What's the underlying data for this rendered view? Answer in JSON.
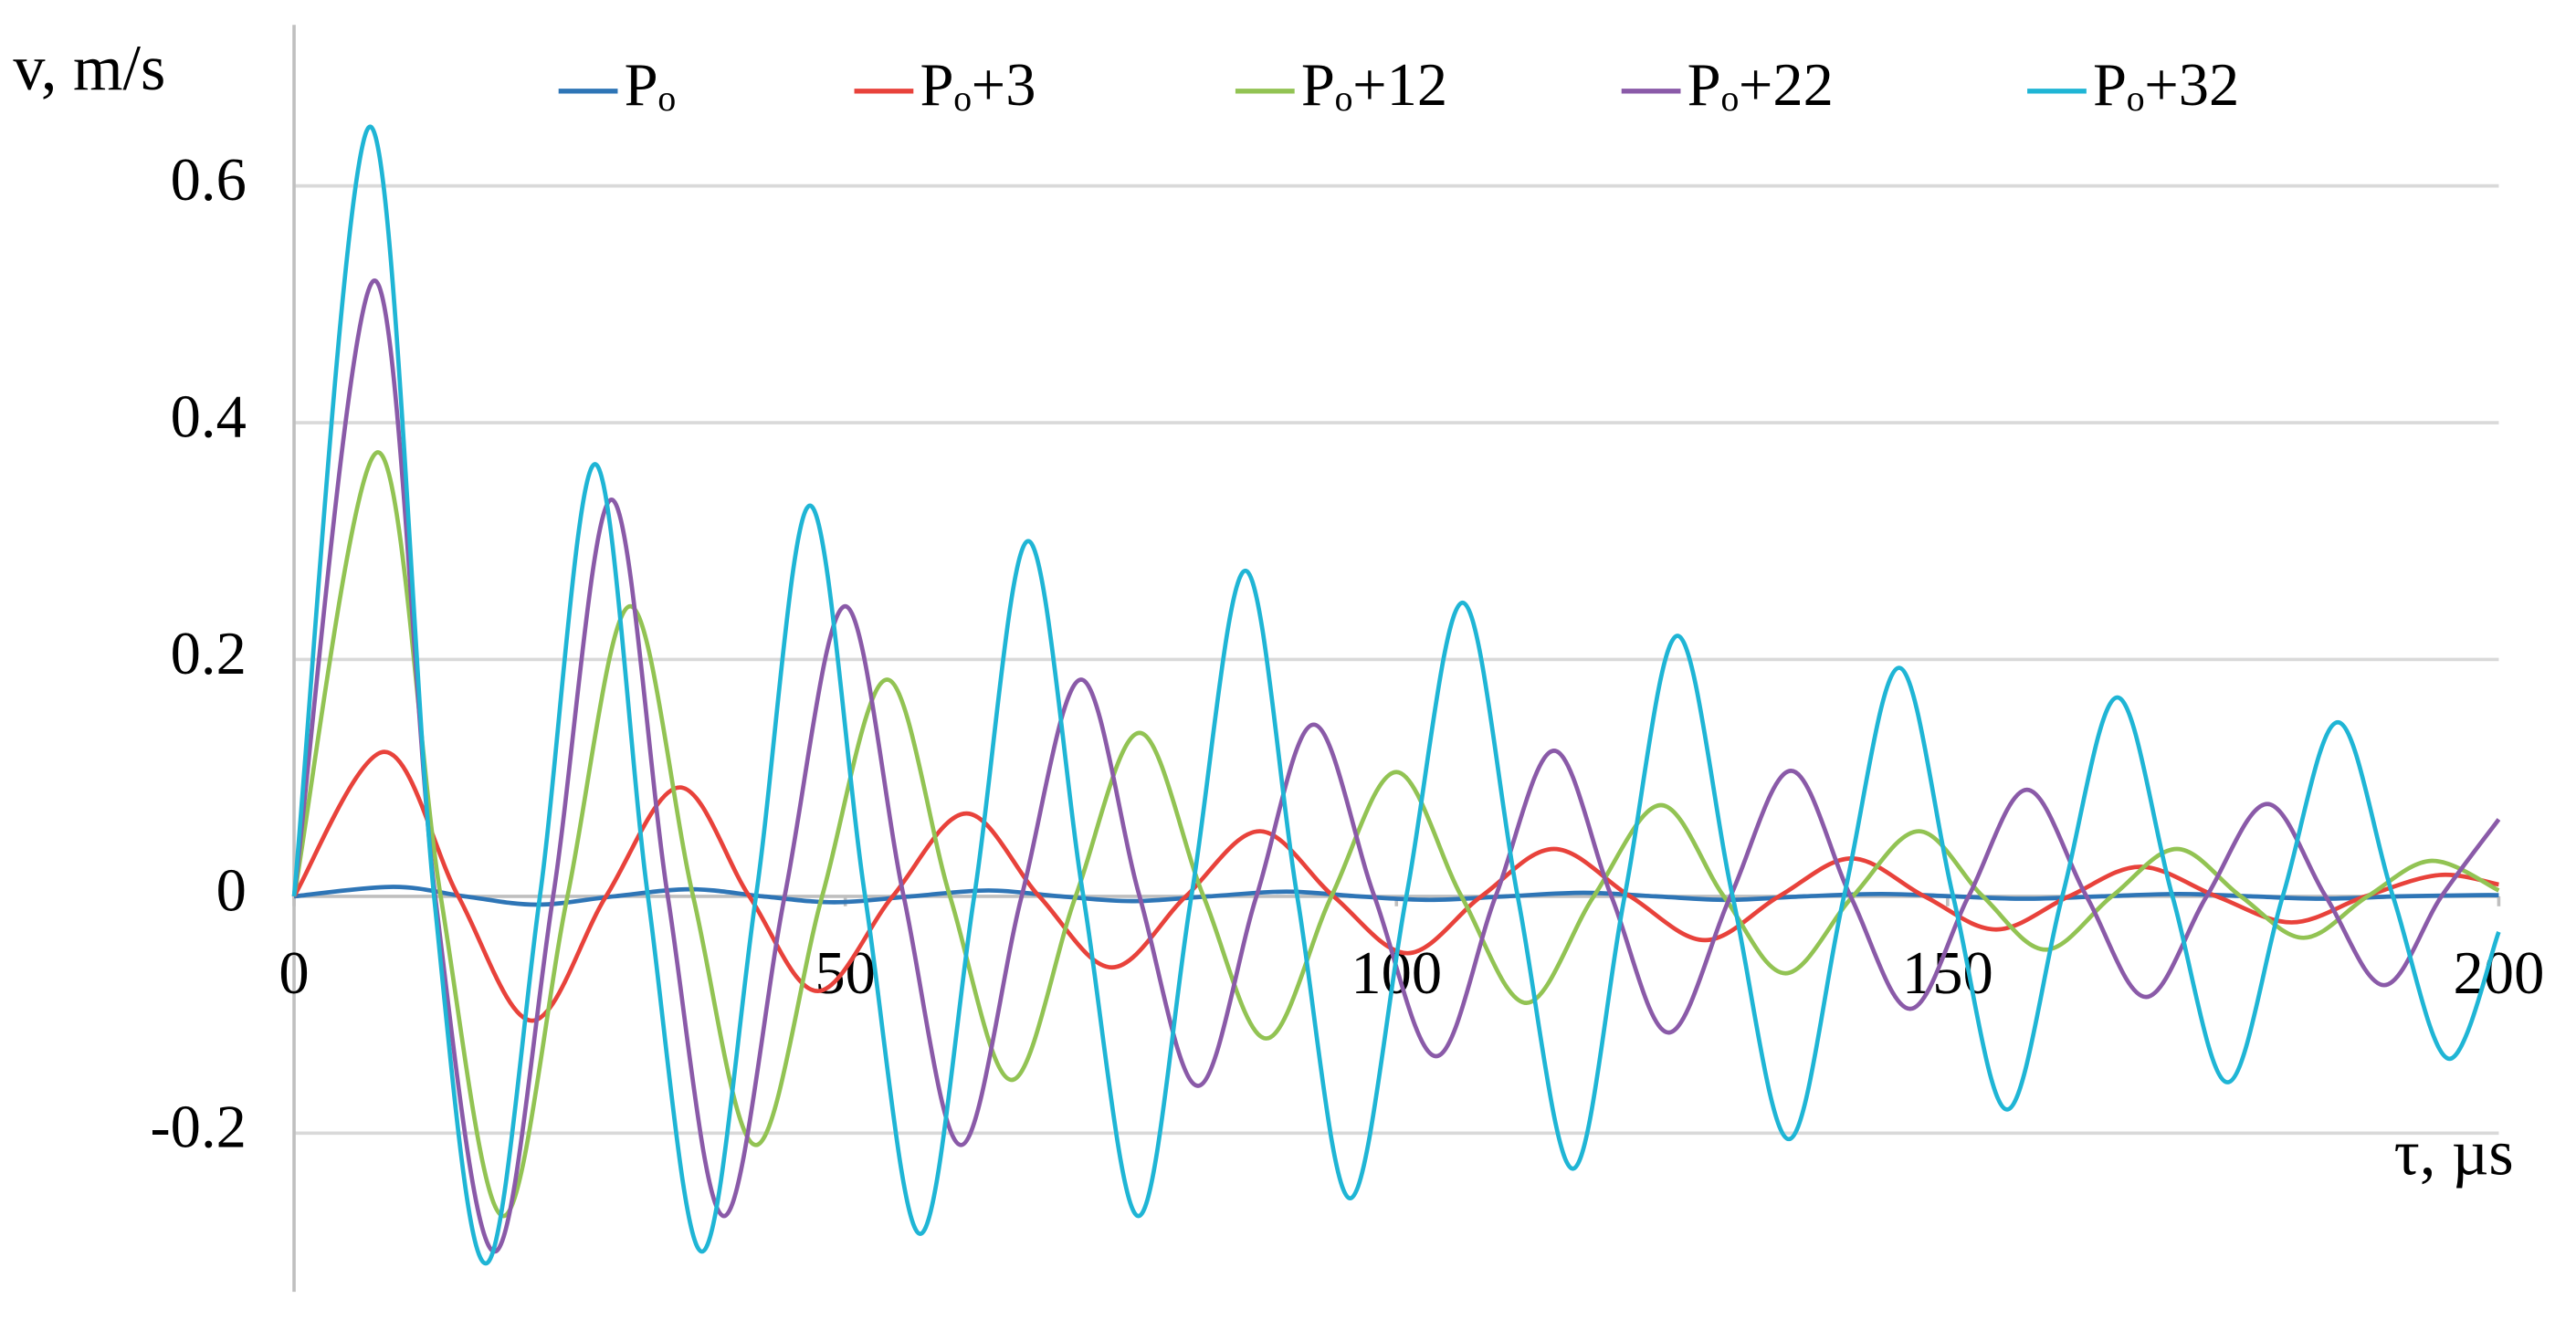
{
  "chart_data": {
    "type": "line",
    "y_label": "v, m/s",
    "x_label": "τ, µs",
    "xlim": [
      0,
      200
    ],
    "xticks": [
      0,
      50,
      100,
      150,
      200
    ],
    "ylim": [
      -0.334,
      0.736
    ],
    "yticks": [
      -0.2,
      0,
      0.2,
      0.4,
      0.6
    ],
    "grid": true,
    "legend": "top",
    "series": [
      {
        "name": "Pₒ",
        "color": "#2e75b6",
        "x": [
          0,
          9,
          15.5,
          22,
          29,
          36,
          42.5,
          49,
          56,
          63,
          69.5,
          76,
          83,
          90,
          96.5,
          103,
          110,
          117,
          123.5,
          130,
          137,
          144,
          150.5,
          157,
          164,
          171,
          177.5,
          184,
          191,
          198,
          200
        ],
        "values": [
          0,
          0.008,
          0,
          -0.007,
          0,
          0.006,
          0,
          -0.005,
          0,
          0.005,
          0,
          -0.004,
          0,
          0.004,
          0,
          -0.003,
          0,
          0.003,
          0,
          -0.003,
          0,
          0.002,
          0,
          -0.002,
          0,
          0.002,
          0,
          -0.002,
          0,
          0.001,
          0.001
        ]
      },
      {
        "name": "Pₒ+3",
        "color": "#e8423b",
        "x": [
          0,
          8.2,
          14.9,
          21.6,
          28.3,
          35,
          41.3,
          47.5,
          54.3,
          61,
          67.6,
          74.2,
          80.9,
          87.6,
          94.3,
          101,
          107.7,
          114.3,
          121.2,
          128,
          134.7,
          141.3,
          147.9,
          154.4,
          161,
          167.5,
          174.4,
          181.2,
          187.9,
          194.6,
          200
        ],
        "values": [
          0,
          0.122,
          0,
          -0.105,
          0,
          0.092,
          0,
          -0.08,
          0,
          0.07,
          0,
          -0.06,
          0,
          0.055,
          0,
          -0.048,
          0,
          0.04,
          0,
          -0.037,
          0,
          0.032,
          0,
          -0.028,
          0,
          0.025,
          0,
          -0.022,
          0,
          0.018,
          0.01
        ]
      },
      {
        "name": "Pₒ+12",
        "color": "#92c353",
        "x": [
          0,
          7.6,
          13.3,
          19,
          24.8,
          30.5,
          36.2,
          41.9,
          47.9,
          53.8,
          59.5,
          65.1,
          70.9,
          76.7,
          82.5,
          88.2,
          94.1,
          100,
          105.9,
          111.8,
          117.9,
          124,
          129.7,
          135.3,
          141.4,
          147.4,
          153.2,
          158.9,
          164.9,
          170.8,
          176.6,
          182.3,
          188.1,
          193.9,
          200
        ],
        "values": [
          0,
          0.375,
          0,
          -0.27,
          0,
          0.245,
          0,
          -0.21,
          0,
          0.183,
          0,
          -0.155,
          0,
          0.138,
          0,
          -0.12,
          0,
          0.105,
          0,
          -0.09,
          0,
          0.077,
          0,
          -0.065,
          0,
          0.055,
          0,
          -0.045,
          0,
          0.04,
          0,
          -0.035,
          0,
          0.03,
          0.005
        ]
      },
      {
        "name": "Pₒ+22",
        "color": "#8a5aa8",
        "x": [
          0,
          7.3,
          12.8,
          18.2,
          23.5,
          28.8,
          33.9,
          39,
          44.5,
          50,
          55.3,
          60.5,
          66,
          71.4,
          76.7,
          82,
          87.3,
          92.5,
          98,
          103.6,
          109,
          114.3,
          119.5,
          124.7,
          130.3,
          135.8,
          141.2,
          146.6,
          151.9,
          157.2,
          162.6,
          168,
          173.5,
          179,
          184.3,
          189.6,
          194.8,
          200
        ],
        "values": [
          0,
          0.52,
          0,
          -0.3,
          0,
          0.335,
          0,
          -0.27,
          0,
          0.245,
          0,
          -0.21,
          0,
          0.183,
          0,
          -0.16,
          0,
          0.145,
          0,
          -0.135,
          0,
          0.123,
          0,
          -0.115,
          0,
          0.106,
          0,
          -0.095,
          0,
          0.09,
          0,
          -0.085,
          0,
          0.078,
          0,
          -0.075,
          0,
          0.065
        ]
      },
      {
        "name": "Pₒ+32",
        "color": "#1fb5d5",
        "x": [
          0,
          6.9,
          12.7,
          17.4,
          22.3,
          27.3,
          32.1,
          37,
          41.9,
          46.8,
          51.8,
          56.8,
          61.7,
          66.6,
          71.6,
          76.6,
          81.4,
          86.3,
          91,
          95.8,
          100.9,
          106,
          111,
          116,
          120.7,
          125.5,
          130.5,
          135.6,
          140.6,
          145.6,
          150.5,
          155.4,
          160.4,
          165.4,
          170.4,
          175.4,
          180.4,
          185.4,
          190.4,
          195.4,
          200
        ],
        "values": [
          0,
          0.65,
          0,
          -0.31,
          0,
          0.365,
          0,
          -0.3,
          0,
          0.33,
          0,
          -0.285,
          0,
          0.3,
          0,
          -0.27,
          0,
          0.275,
          0,
          -0.255,
          0,
          0.248,
          0,
          -0.23,
          0,
          0.22,
          0,
          -0.205,
          0,
          0.193,
          0,
          -0.18,
          0,
          0.168,
          0,
          -0.157,
          0,
          0.147,
          0,
          -0.137,
          -0.03
        ]
      }
    ]
  }
}
